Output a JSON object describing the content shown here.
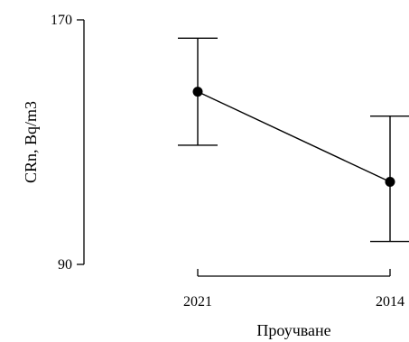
{
  "chart_data": {
    "type": "line",
    "title": "",
    "xlabel": "Проучване",
    "ylabel": "CRn, Bq/m3",
    "categories": [
      "2021",
      "2014"
    ],
    "series": [
      {
        "values": [
          146.5,
          117
        ],
        "error_low": [
          129,
          97.5
        ],
        "error_high": [
          164,
          138.5
        ]
      }
    ],
    "ylim": [
      90,
      170
    ],
    "yticks": [
      90,
      170
    ],
    "grid": false,
    "legend": "none",
    "colors": {
      "line": "#000000",
      "marker": "#000000",
      "errorbar": "#000000",
      "axis": "#000000"
    }
  }
}
